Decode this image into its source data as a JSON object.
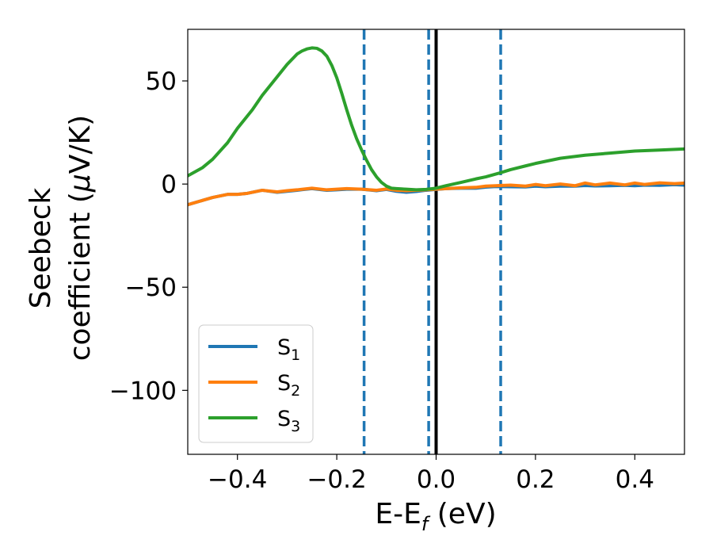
{
  "chart_data": {
    "type": "line",
    "xlabel": {
      "main": "E-E",
      "sub": "f",
      "tail": " (eV)"
    },
    "ylabel": {
      "line1": "Seebeck",
      "line2_prefix": "coefficient  (",
      "mu": "μ",
      "line2_suffix": "V/K)"
    },
    "xlim": [
      -0.5,
      0.5
    ],
    "ylim": [
      -131,
      75
    ],
    "xticks": [
      -0.4,
      -0.2,
      0.0,
      0.2,
      0.4
    ],
    "xtick_labels": [
      "−0.4",
      "−0.2",
      "0.0",
      "0.2",
      "0.4"
    ],
    "yticks": [
      50,
      0,
      -50,
      -100
    ],
    "ytick_labels": [
      "50",
      "0",
      "−50",
      "−100"
    ],
    "grid": false,
    "legend_position": "lower-left",
    "vertical_lines": [
      {
        "x": -0.145,
        "style": "dashed",
        "color": "#1f77b4"
      },
      {
        "x": -0.015,
        "style": "dashed",
        "color": "#1f77b4"
      },
      {
        "x": 0.0,
        "style": "solid",
        "color": "#000000"
      },
      {
        "x": 0.13,
        "style": "dashed",
        "color": "#1f77b4"
      }
    ],
    "series": [
      {
        "name": "S",
        "sub": "1",
        "color": "#1f77b4",
        "x": [
          -0.5,
          -0.45,
          -0.42,
          -0.4,
          -0.38,
          -0.35,
          -0.32,
          -0.3,
          -0.28,
          -0.25,
          -0.22,
          -0.2,
          -0.18,
          -0.15,
          -0.12,
          -0.1,
          -0.08,
          -0.06,
          -0.04,
          -0.02,
          0.0,
          0.02,
          0.05,
          0.08,
          0.1,
          0.12,
          0.15,
          0.18,
          0.2,
          0.22,
          0.25,
          0.28,
          0.3,
          0.32,
          0.35,
          0.38,
          0.4,
          0.42,
          0.45,
          0.48,
          0.5
        ],
        "y": [
          -10,
          -6.5,
          -5,
          -5,
          -4.5,
          -3,
          -4,
          -3.5,
          -3,
          -2.2,
          -3,
          -2.8,
          -2.5,
          -2.5,
          -3.2,
          -2.6,
          -3.5,
          -4,
          -3.6,
          -3,
          -2.6,
          -2.2,
          -2,
          -2,
          -1.5,
          -1.2,
          -1.3,
          -1.4,
          -1,
          -1.3,
          -1,
          -1,
          -0.7,
          -0.9,
          -0.8,
          -0.6,
          -0.8,
          -0.5,
          -0.6,
          -0.3,
          -0.5
        ]
      },
      {
        "name": "S",
        "sub": "2",
        "color": "#ff7f0e",
        "x": [
          -0.5,
          -0.45,
          -0.42,
          -0.4,
          -0.38,
          -0.35,
          -0.32,
          -0.3,
          -0.28,
          -0.25,
          -0.22,
          -0.2,
          -0.18,
          -0.15,
          -0.12,
          -0.1,
          -0.08,
          -0.06,
          -0.04,
          -0.02,
          0.0,
          0.02,
          0.05,
          0.08,
          0.1,
          0.12,
          0.15,
          0.18,
          0.2,
          0.22,
          0.25,
          0.28,
          0.3,
          0.32,
          0.35,
          0.38,
          0.4,
          0.42,
          0.45,
          0.48,
          0.5
        ],
        "y": [
          -10,
          -6.5,
          -5,
          -5,
          -4.5,
          -3,
          -3.8,
          -3.2,
          -2.8,
          -2,
          -2.8,
          -2.5,
          -2.2,
          -2.5,
          -3,
          -2.4,
          -3,
          -3.2,
          -3,
          -2.8,
          -2.5,
          -2.2,
          -1.8,
          -1.6,
          -1,
          -0.8,
          -0.5,
          -1,
          -0.2,
          -0.8,
          0,
          -0.8,
          0.5,
          -0.4,
          0.5,
          -0.4,
          0.5,
          -0.2,
          0.6,
          0.2,
          0.5
        ]
      },
      {
        "name": "S",
        "sub": "3",
        "color": "#2ca02c",
        "x": [
          -0.5,
          -0.47,
          -0.45,
          -0.42,
          -0.4,
          -0.37,
          -0.35,
          -0.32,
          -0.3,
          -0.28,
          -0.27,
          -0.26,
          -0.25,
          -0.24,
          -0.23,
          -0.22,
          -0.21,
          -0.2,
          -0.19,
          -0.18,
          -0.17,
          -0.16,
          -0.15,
          -0.14,
          -0.13,
          -0.12,
          -0.11,
          -0.1,
          -0.09,
          -0.08,
          -0.06,
          -0.04,
          -0.02,
          0.0,
          0.02,
          0.05,
          0.08,
          0.1,
          0.13,
          0.15,
          0.18,
          0.2,
          0.25,
          0.3,
          0.35,
          0.4,
          0.45,
          0.5
        ],
        "y": [
          4,
          8,
          12,
          20,
          27,
          36,
          43,
          52,
          58,
          63,
          64.5,
          65.5,
          66,
          65.8,
          64.5,
          62,
          57.5,
          51.5,
          44,
          36,
          28.5,
          22,
          16.5,
          11.5,
          7,
          3.5,
          0.8,
          -1,
          -2,
          -2.2,
          -2.5,
          -2.8,
          -2.6,
          -2,
          -0.8,
          0.8,
          2.5,
          3.5,
          5.5,
          7,
          8.8,
          10,
          12.5,
          14,
          15,
          16,
          16.5,
          17
        ]
      }
    ]
  }
}
